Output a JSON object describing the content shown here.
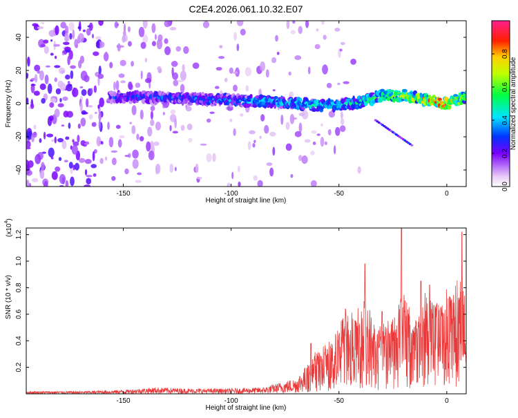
{
  "title": "C2E4.2026.061.10.32.E07",
  "chart_data": [
    {
      "type": "heatmap",
      "name": "spectrogram",
      "xlabel": "Height of straight line (km)",
      "ylabel": "Frequency (Hz)",
      "xlim": [
        -195,
        9
      ],
      "ylim": [
        -50,
        50
      ],
      "xticks": [
        -150,
        -100,
        -50,
        0
      ],
      "yticks": [
        -40,
        -20,
        0,
        20,
        40
      ],
      "xtick_labels": [
        "-150",
        "-100",
        "-50",
        "0"
      ],
      "ytick_labels": [
        "-40",
        "-20",
        "0",
        "20",
        "40"
      ],
      "ridge": {
        "description_points_x": [
          -156,
          -140,
          -120,
          -100,
          -80,
          -60,
          -50,
          -40,
          -30,
          -20,
          -10,
          0,
          8
        ],
        "frequency_hz": [
          4,
          4,
          3,
          2,
          1,
          -1,
          -1,
          1,
          5,
          5,
          2,
          0,
          4
        ],
        "peak_amplitude": [
          0.3,
          0.35,
          0.35,
          0.4,
          0.45,
          0.5,
          0.45,
          0.5,
          0.6,
          0.7,
          0.8,
          0.95,
          0.6
        ]
      },
      "colorbar": {
        "label": "Normalized spectral amplitude",
        "range": [
          0,
          1
        ],
        "ticks": [
          0.0,
          0.2,
          0.4,
          0.6,
          0.8
        ],
        "tick_labels": [
          "0.0",
          "0.2",
          "0.4",
          "0.6",
          "0.8"
        ]
      }
    },
    {
      "type": "line",
      "name": "snr",
      "xlabel": "Height of straight line (km)",
      "ylabel": "SNR (10 * v/v)",
      "multiplier_label": "(x10",
      "multiplier_exp": "4",
      "xlim": [
        -195,
        9
      ],
      "ylim": [
        0,
        1.25
      ],
      "xticks": [
        -150,
        -100,
        -50,
        0
      ],
      "yticks": [
        0.2,
        0.4,
        0.6,
        0.8,
        1.0,
        1.2
      ],
      "xtick_labels": [
        "-150",
        "-100",
        "-50",
        "0"
      ],
      "ytick_labels": [
        "0.2",
        "0.4",
        "0.6",
        "0.8",
        "1.0",
        "1.2"
      ],
      "color": "#e83a3a",
      "envelope": {
        "x": [
          -195,
          -170,
          -150,
          -135,
          -120,
          -100,
          -85,
          -70,
          -62,
          -55,
          -48,
          -42,
          -38,
          -33,
          -28,
          -24,
          -20,
          -15,
          -10,
          -5,
          0,
          5,
          8,
          9
        ],
        "y": [
          0.02,
          0.02,
          0.03,
          0.05,
          0.04,
          0.04,
          0.05,
          0.12,
          0.28,
          0.35,
          0.55,
          0.58,
          0.7,
          0.45,
          0.5,
          0.55,
          0.75,
          0.5,
          0.72,
          0.68,
          0.72,
          0.78,
          0.85,
          0.4
        ]
      },
      "peaks": [
        {
          "x": -63,
          "y": 0.38
        },
        {
          "x": -47,
          "y": 0.64
        },
        {
          "x": -38,
          "y": 0.98
        },
        {
          "x": -30,
          "y": 0.62
        },
        {
          "x": -21,
          "y": 1.25
        },
        {
          "x": -12,
          "y": 0.85
        },
        {
          "x": -8,
          "y": 0.82
        },
        {
          "x": 7,
          "y": 1.22
        }
      ]
    }
  ]
}
